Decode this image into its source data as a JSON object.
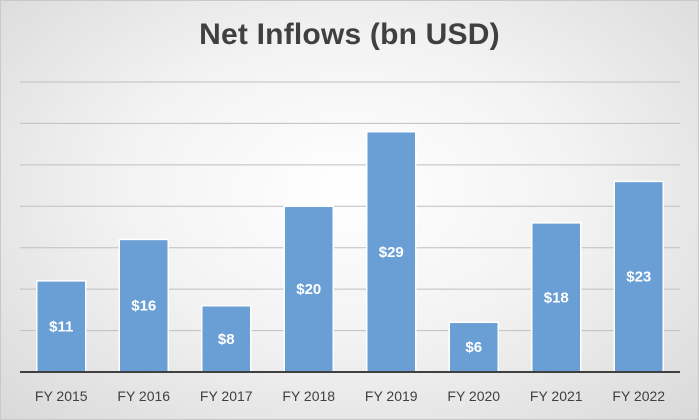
{
  "chart_data": {
    "type": "bar",
    "title": "Net Inflows (bn USD)",
    "categories": [
      "FY 2015",
      "FY 2016",
      "FY 2017",
      "FY 2018",
      "FY 2019",
      "FY 2020",
      "FY 2021",
      "FY 2022"
    ],
    "values": [
      11,
      16,
      8,
      20,
      29,
      6,
      18,
      23
    ],
    "data_labels": [
      "$11",
      "$16",
      "$8",
      "$20",
      "$29",
      "$6",
      "$18",
      "$23"
    ],
    "ylim": [
      0,
      35
    ],
    "y_gridline_step": 5,
    "y_tick_labels_visible": false,
    "grid": true,
    "legend": "none",
    "bar_color": "#6a9fd6",
    "label_color": "#ffffff",
    "text_color": "#404040"
  }
}
